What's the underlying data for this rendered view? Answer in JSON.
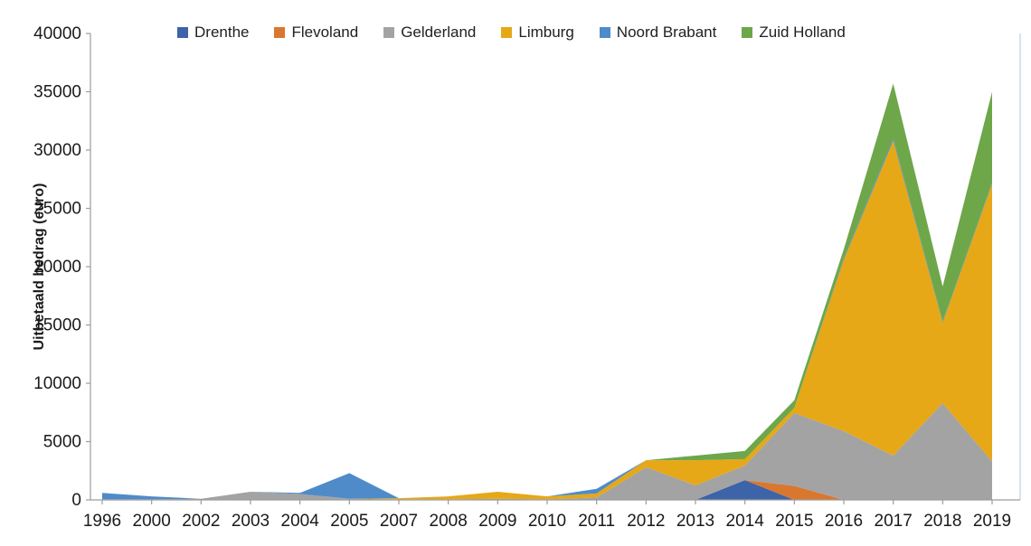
{
  "chart_data": {
    "type": "area",
    "stacked": true,
    "title": "",
    "xlabel": "",
    "ylabel": "Uitbetaald bedrag (euro)",
    "legend_position": "top",
    "grid": false,
    "ylim": [
      0,
      40000
    ],
    "yticks": [
      0,
      5000,
      10000,
      15000,
      20000,
      25000,
      30000,
      35000,
      40000
    ],
    "categories": [
      "1996",
      "2000",
      "2002",
      "2003",
      "2004",
      "2005",
      "2007",
      "2008",
      "2009",
      "2010",
      "2011",
      "2012",
      "2013",
      "2014",
      "2015",
      "2016",
      "2017",
      "2018",
      "2019"
    ],
    "series": [
      {
        "name": "Drenthe",
        "color": "#3D63A8",
        "values": [
          0,
          0,
          0,
          0,
          0,
          0,
          0,
          0,
          0,
          0,
          0,
          0,
          0,
          1700,
          0,
          0,
          0,
          0,
          0
        ]
      },
      {
        "name": "Flevoland",
        "color": "#D9772E",
        "values": [
          0,
          0,
          0,
          0,
          0,
          0,
          0,
          0,
          0,
          0,
          0,
          0,
          0,
          0,
          1200,
          0,
          0,
          0,
          0
        ]
      },
      {
        "name": "Gelderland",
        "color": "#A3A3A3",
        "values": [
          50,
          50,
          100,
          700,
          500,
          100,
          50,
          50,
          100,
          50,
          200,
          2800,
          1250,
          1250,
          6250,
          5900,
          3800,
          8300,
          3300
        ]
      },
      {
        "name": "Limburg",
        "color": "#E6A817",
        "values": [
          0,
          0,
          0,
          0,
          0,
          0,
          100,
          250,
          600,
          250,
          350,
          600,
          2150,
          550,
          450,
          14700,
          27000,
          6900,
          23800
        ]
      },
      {
        "name": "Noord Brabant",
        "color": "#4F8BC9",
        "values": [
          550,
          250,
          0,
          0,
          100,
          2200,
          0,
          0,
          0,
          0,
          400,
          0,
          0,
          0,
          0,
          150,
          200,
          100,
          100
        ]
      },
      {
        "name": "Zuid Holland",
        "color": "#6EA64A",
        "values": [
          0,
          0,
          0,
          0,
          0,
          0,
          0,
          0,
          0,
          0,
          0,
          0,
          400,
          700,
          650,
          750,
          4700,
          3000,
          7800
        ]
      }
    ],
    "axis_color": "#9c9c9c",
    "right_border_color": "#c9daea",
    "tick_label_color": "#1a1a1a"
  }
}
